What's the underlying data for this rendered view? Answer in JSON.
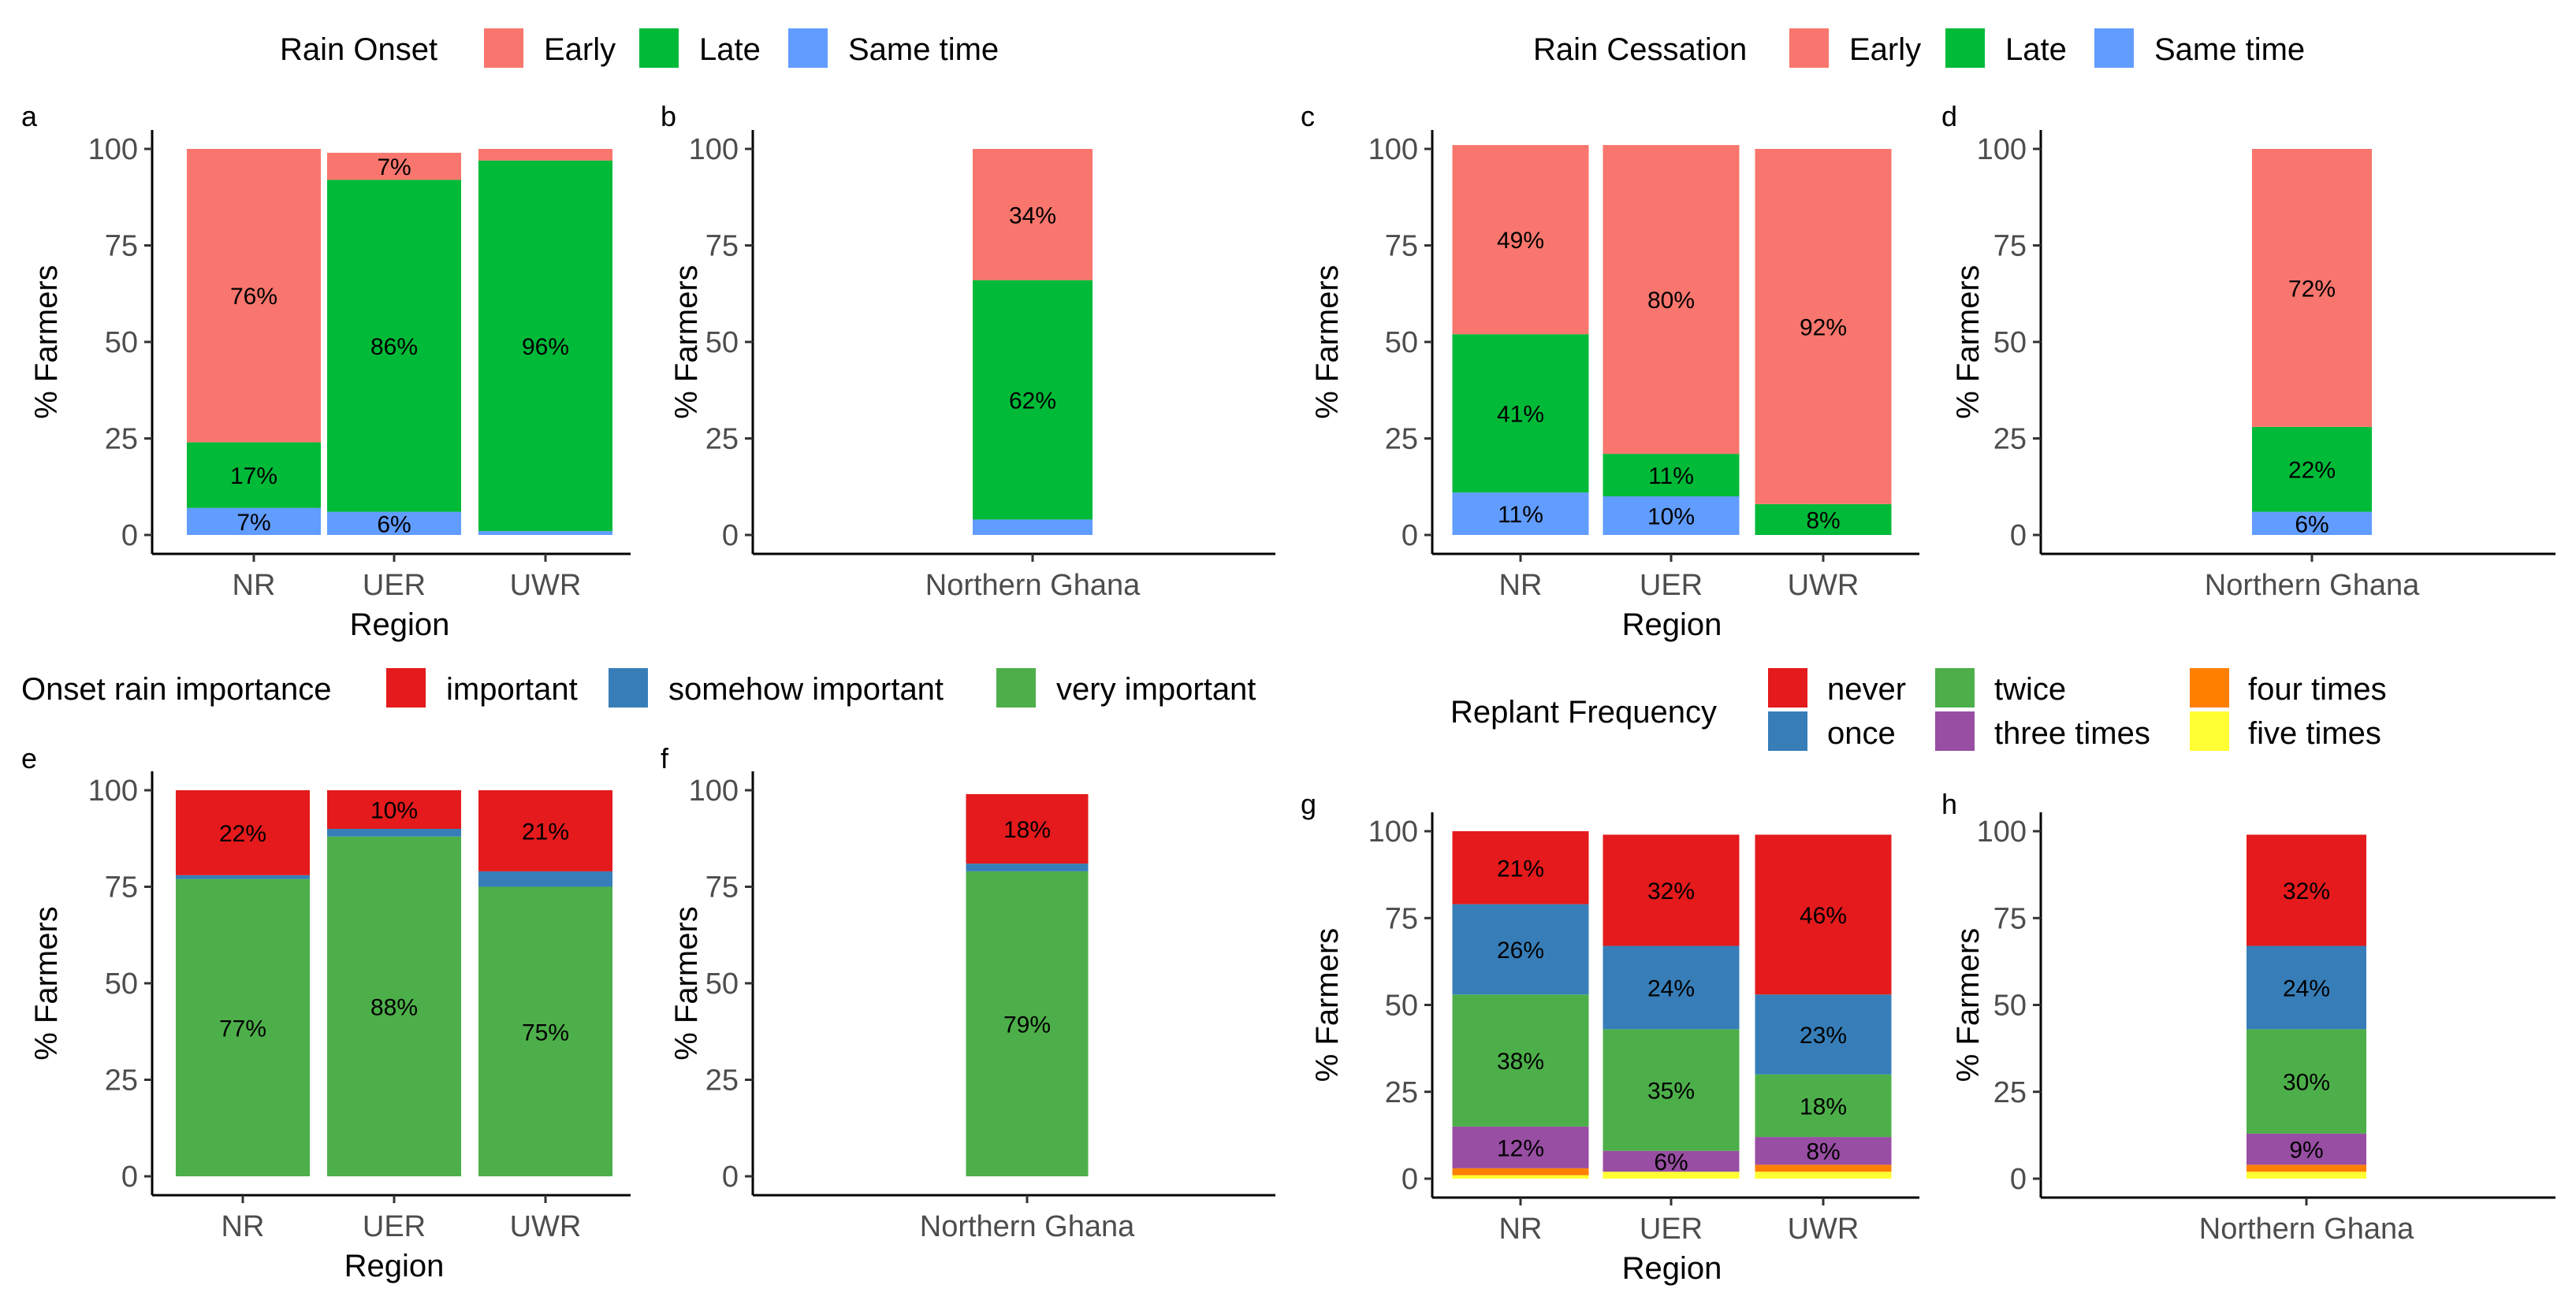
{
  "colors": {
    "early": "#F8766D",
    "late": "#00BA38",
    "same_time": "#619CFF",
    "important": "#E41A1C",
    "somehow_important": "#377EB8",
    "very_important": "#4DAF4A",
    "never": "#E41A1C",
    "once": "#377EB8",
    "twice": "#4DAF4A",
    "three_times": "#984EA3",
    "four_times": "#FF7F00",
    "five_times": "#FFFF33"
  },
  "legends": {
    "rain_onset": {
      "title": "Rain Onset",
      "items": [
        {
          "label": "Early",
          "color": "#F8766D"
        },
        {
          "label": "Late",
          "color": "#00BA38"
        },
        {
          "label": "Same time",
          "color": "#619CFF"
        }
      ]
    },
    "rain_cessation": {
      "title": "Rain Cessation",
      "items": [
        {
          "label": "Early",
          "color": "#F8766D"
        },
        {
          "label": "Late",
          "color": "#00BA38"
        },
        {
          "label": "Same time",
          "color": "#619CFF"
        }
      ]
    },
    "onset_importance": {
      "title": "Onset rain importance",
      "items": [
        {
          "label": "important",
          "color": "#E41A1C"
        },
        {
          "label": "somehow important",
          "color": "#377EB8"
        },
        {
          "label": "very important",
          "color": "#4DAF4A"
        }
      ]
    },
    "replant_frequency": {
      "title": "Replant Frequency",
      "items": [
        {
          "label": "never",
          "color": "#E41A1C"
        },
        {
          "label": "once",
          "color": "#377EB8"
        },
        {
          "label": "twice",
          "color": "#4DAF4A"
        },
        {
          "label": "three times",
          "color": "#984EA3"
        },
        {
          "label": "four times",
          "color": "#FF7F00"
        },
        {
          "label": "five times",
          "color": "#FFFF33"
        }
      ]
    }
  },
  "chart_data": [
    {
      "panel": "a",
      "type": "bar",
      "stacked": true,
      "ylabel": "% Farmers",
      "xlabel": "Region",
      "ylim": [
        0,
        100
      ],
      "yticks": [
        0,
        25,
        50,
        75,
        100
      ],
      "categories": [
        "NR",
        "UER",
        "UWR"
      ],
      "series": [
        {
          "name": "Same time",
          "color": "#619CFF",
          "values": [
            7,
            6,
            1
          ],
          "labels": [
            "7%",
            "6%",
            ""
          ]
        },
        {
          "name": "Late",
          "color": "#00BA38",
          "values": [
            17,
            86,
            96
          ],
          "labels": [
            "17%",
            "86%",
            "96%"
          ]
        },
        {
          "name": "Early",
          "color": "#F8766D",
          "values": [
            76,
            7,
            3
          ],
          "labels": [
            "76%",
            "7%",
            ""
          ]
        }
      ]
    },
    {
      "panel": "b",
      "type": "bar",
      "stacked": true,
      "ylabel": "% Farmers",
      "xlabel": "",
      "ylim": [
        0,
        100
      ],
      "yticks": [
        0,
        25,
        50,
        75,
        100
      ],
      "categories": [
        "Northern Ghana"
      ],
      "series": [
        {
          "name": "Same time",
          "color": "#619CFF",
          "values": [
            4
          ],
          "labels": [
            ""
          ]
        },
        {
          "name": "Late",
          "color": "#00BA38",
          "values": [
            62
          ],
          "labels": [
            "62%"
          ]
        },
        {
          "name": "Early",
          "color": "#F8766D",
          "values": [
            34
          ],
          "labels": [
            "34%"
          ]
        }
      ]
    },
    {
      "panel": "c",
      "type": "bar",
      "stacked": true,
      "ylabel": "% Farmers",
      "xlabel": "Region",
      "ylim": [
        0,
        100
      ],
      "yticks": [
        0,
        25,
        50,
        75,
        100
      ],
      "categories": [
        "NR",
        "UER",
        "UWR"
      ],
      "series": [
        {
          "name": "Same time",
          "color": "#619CFF",
          "values": [
            11,
            10,
            0
          ],
          "labels": [
            "11%",
            "10%",
            ""
          ]
        },
        {
          "name": "Late",
          "color": "#00BA38",
          "values": [
            41,
            11,
            8
          ],
          "labels": [
            "41%",
            "11%",
            "8%"
          ]
        },
        {
          "name": "Early",
          "color": "#F8766D",
          "values": [
            49,
            80,
            92
          ],
          "labels": [
            "49%",
            "80%",
            "92%"
          ]
        }
      ]
    },
    {
      "panel": "d",
      "type": "bar",
      "stacked": true,
      "ylabel": "% Farmers",
      "xlabel": "",
      "ylim": [
        0,
        100
      ],
      "yticks": [
        0,
        25,
        50,
        75,
        100
      ],
      "categories": [
        "Northern Ghana"
      ],
      "series": [
        {
          "name": "Same time",
          "color": "#619CFF",
          "values": [
            6
          ],
          "labels": [
            "6%"
          ]
        },
        {
          "name": "Late",
          "color": "#00BA38",
          "values": [
            22
          ],
          "labels": [
            "22%"
          ]
        },
        {
          "name": "Early",
          "color": "#F8766D",
          "values": [
            72
          ],
          "labels": [
            "72%"
          ]
        }
      ]
    },
    {
      "panel": "e",
      "type": "bar",
      "stacked": true,
      "ylabel": "% Farmers",
      "xlabel": "Region",
      "ylim": [
        0,
        100
      ],
      "yticks": [
        0,
        25,
        50,
        75,
        100
      ],
      "categories": [
        "NR",
        "UER",
        "UWR"
      ],
      "series": [
        {
          "name": "very important",
          "color": "#4DAF4A",
          "values": [
            77,
            88,
            75
          ],
          "labels": [
            "77%",
            "88%",
            "75%"
          ]
        },
        {
          "name": "somehow important",
          "color": "#377EB8",
          "values": [
            1,
            2,
            4
          ],
          "labels": [
            "",
            "",
            ""
          ]
        },
        {
          "name": "important",
          "color": "#E41A1C",
          "values": [
            22,
            10,
            21
          ],
          "labels": [
            "22%",
            "10%",
            "21%"
          ]
        }
      ]
    },
    {
      "panel": "f",
      "type": "bar",
      "stacked": true,
      "ylabel": "% Farmers",
      "xlabel": "",
      "ylim": [
        0,
        100
      ],
      "yticks": [
        0,
        25,
        50,
        75,
        100
      ],
      "categories": [
        "Northern Ghana"
      ],
      "series": [
        {
          "name": "very important",
          "color": "#4DAF4A",
          "values": [
            79
          ],
          "labels": [
            "79%"
          ]
        },
        {
          "name": "somehow important",
          "color": "#377EB8",
          "values": [
            2
          ],
          "labels": [
            ""
          ]
        },
        {
          "name": "important",
          "color": "#E41A1C",
          "values": [
            18
          ],
          "labels": [
            "18%"
          ]
        }
      ]
    },
    {
      "panel": "g",
      "type": "bar",
      "stacked": true,
      "ylabel": "% Farmers",
      "xlabel": "Region",
      "ylim": [
        0,
        100
      ],
      "yticks": [
        0,
        25,
        50,
        75,
        100
      ],
      "categories": [
        "NR",
        "UER",
        "UWR"
      ],
      "series": [
        {
          "name": "five times",
          "color": "#FFFF33",
          "values": [
            1,
            2,
            2
          ],
          "labels": [
            "",
            "",
            ""
          ]
        },
        {
          "name": "four times",
          "color": "#FF7F00",
          "values": [
            2,
            0,
            2
          ],
          "labels": [
            "",
            "",
            ""
          ]
        },
        {
          "name": "three times",
          "color": "#984EA3",
          "values": [
            12,
            6,
            8
          ],
          "labels": [
            "12%",
            "6%",
            "8%"
          ]
        },
        {
          "name": "twice",
          "color": "#4DAF4A",
          "values": [
            38,
            35,
            18
          ],
          "labels": [
            "38%",
            "35%",
            "18%"
          ]
        },
        {
          "name": "once",
          "color": "#377EB8",
          "values": [
            26,
            24,
            23
          ],
          "labels": [
            "26%",
            "24%",
            "23%"
          ]
        },
        {
          "name": "never",
          "color": "#E41A1C",
          "values": [
            21,
            32,
            46
          ],
          "labels": [
            "21%",
            "32%",
            "46%"
          ]
        }
      ]
    },
    {
      "panel": "h",
      "type": "bar",
      "stacked": true,
      "ylabel": "% Farmers",
      "xlabel": "",
      "ylim": [
        0,
        100
      ],
      "yticks": [
        0,
        25,
        50,
        75,
        100
      ],
      "categories": [
        "Northern Ghana"
      ],
      "series": [
        {
          "name": "five times",
          "color": "#FFFF33",
          "values": [
            2
          ],
          "labels": [
            ""
          ]
        },
        {
          "name": "four times",
          "color": "#FF7F00",
          "values": [
            2
          ],
          "labels": [
            ""
          ]
        },
        {
          "name": "three times",
          "color": "#984EA3",
          "values": [
            9
          ],
          "labels": [
            "9%"
          ]
        },
        {
          "name": "twice",
          "color": "#4DAF4A",
          "values": [
            30
          ],
          "labels": [
            "30%"
          ]
        },
        {
          "name": "once",
          "color": "#377EB8",
          "values": [
            24
          ],
          "labels": [
            "24%"
          ]
        },
        {
          "name": "never",
          "color": "#E41A1C",
          "values": [
            32
          ],
          "labels": [
            "32%"
          ]
        }
      ]
    }
  ]
}
